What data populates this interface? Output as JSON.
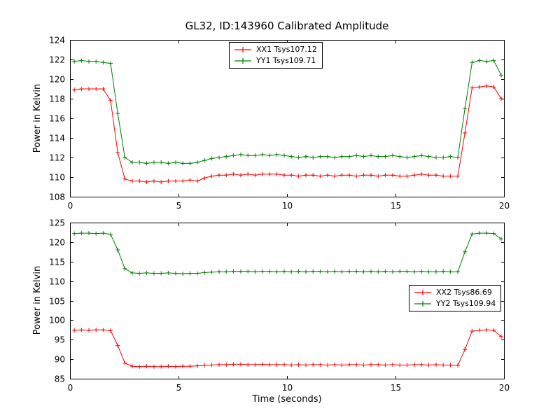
{
  "title": "GL32, ID:143960 Calibrated Amplitude",
  "xlabel": "Time (seconds)",
  "colors": {
    "xx": "#ff0000",
    "yy": "#008000",
    "axis": "#000000",
    "background": "#ffffff"
  },
  "chart_data": [
    {
      "type": "line",
      "ylabel": "Power in Kelvin",
      "xlim": [
        0,
        20
      ],
      "ylim": [
        108,
        124
      ],
      "xticks": [
        0,
        5,
        10,
        15,
        20
      ],
      "yticks": [
        108,
        110,
        112,
        114,
        116,
        118,
        120,
        122,
        124
      ],
      "grid": false,
      "legend": {
        "position": "top-center",
        "entries": [
          {
            "label": "XX1 Tsys107.12",
            "color": "#ff0000"
          },
          {
            "label": "YY1 Tsys109.71",
            "color": "#008000"
          }
        ]
      },
      "x": [
        0.2,
        0.53,
        0.87,
        1.2,
        1.53,
        1.87,
        2.2,
        2.53,
        2.87,
        3.2,
        3.53,
        3.87,
        4.2,
        4.53,
        4.87,
        5.2,
        5.53,
        5.87,
        6.2,
        6.53,
        6.87,
        7.2,
        7.53,
        7.87,
        8.2,
        8.53,
        8.87,
        9.2,
        9.53,
        9.87,
        10.2,
        10.53,
        10.87,
        11.2,
        11.53,
        11.87,
        12.2,
        12.53,
        12.87,
        13.2,
        13.53,
        13.87,
        14.2,
        14.53,
        14.87,
        15.2,
        15.53,
        15.87,
        16.2,
        16.53,
        16.87,
        17.2,
        17.53,
        17.87,
        18.2,
        18.53,
        18.87,
        19.2,
        19.53,
        19.87
      ],
      "series": [
        {
          "name": "XX1",
          "color": "#ff0000",
          "values": [
            118.9,
            119.0,
            119.0,
            119.0,
            119.0,
            117.8,
            112.5,
            109.8,
            109.6,
            109.6,
            109.5,
            109.6,
            109.5,
            109.6,
            109.6,
            109.6,
            109.7,
            109.6,
            109.9,
            110.1,
            110.2,
            110.2,
            110.3,
            110.2,
            110.3,
            110.2,
            110.3,
            110.3,
            110.3,
            110.2,
            110.2,
            110.1,
            110.2,
            110.2,
            110.1,
            110.2,
            110.1,
            110.2,
            110.2,
            110.1,
            110.2,
            110.2,
            110.1,
            110.2,
            110.2,
            110.1,
            110.1,
            110.2,
            110.3,
            110.2,
            110.2,
            110.1,
            110.1,
            110.1,
            114.5,
            119.1,
            119.2,
            119.3,
            119.2,
            118.0
          ]
        },
        {
          "name": "YY1",
          "color": "#008000",
          "values": [
            121.8,
            121.9,
            121.8,
            121.8,
            121.7,
            121.6,
            116.5,
            112.0,
            111.5,
            111.5,
            111.4,
            111.5,
            111.5,
            111.4,
            111.5,
            111.4,
            111.4,
            111.5,
            111.7,
            111.9,
            112.0,
            112.1,
            112.2,
            112.3,
            112.2,
            112.2,
            112.3,
            112.2,
            112.3,
            112.2,
            112.1,
            112.0,
            112.1,
            112.0,
            112.1,
            112.1,
            112.0,
            112.1,
            112.1,
            112.2,
            112.1,
            112.2,
            112.1,
            112.1,
            112.2,
            112.1,
            112.0,
            112.1,
            112.2,
            112.1,
            112.0,
            112.0,
            112.1,
            112.0,
            117.0,
            121.7,
            121.9,
            121.8,
            121.9,
            120.4
          ]
        }
      ]
    },
    {
      "type": "line",
      "xlabel": "Time (seconds)",
      "ylabel": "Power in Kelvin",
      "xlim": [
        0,
        20
      ],
      "ylim": [
        85,
        125
      ],
      "xticks": [
        0,
        5,
        10,
        15,
        20
      ],
      "yticks": [
        85,
        90,
        95,
        100,
        105,
        110,
        115,
        120,
        125
      ],
      "grid": false,
      "legend": {
        "position": "middle-right",
        "entries": [
          {
            "label": "XX2 Tsys86.69",
            "color": "#ff0000"
          },
          {
            "label": "YY2 Tsys109.94",
            "color": "#008000"
          }
        ]
      },
      "x": [
        0.2,
        0.53,
        0.87,
        1.2,
        1.53,
        1.87,
        2.2,
        2.53,
        2.87,
        3.2,
        3.53,
        3.87,
        4.2,
        4.53,
        4.87,
        5.2,
        5.53,
        5.87,
        6.2,
        6.53,
        6.87,
        7.2,
        7.53,
        7.87,
        8.2,
        8.53,
        8.87,
        9.2,
        9.53,
        9.87,
        10.2,
        10.53,
        10.87,
        11.2,
        11.53,
        11.87,
        12.2,
        12.53,
        12.87,
        13.2,
        13.53,
        13.87,
        14.2,
        14.53,
        14.87,
        15.2,
        15.53,
        15.87,
        16.2,
        16.53,
        16.87,
        17.2,
        17.53,
        17.87,
        18.2,
        18.53,
        18.87,
        19.2,
        19.53,
        19.87
      ],
      "series": [
        {
          "name": "XX2",
          "color": "#ff0000",
          "values": [
            97.4,
            97.5,
            97.4,
            97.5,
            97.5,
            97.3,
            93.5,
            89.0,
            88.2,
            88.1,
            88.2,
            88.1,
            88.1,
            88.2,
            88.1,
            88.2,
            88.2,
            88.3,
            88.4,
            88.5,
            88.6,
            88.6,
            88.7,
            88.7,
            88.6,
            88.6,
            88.7,
            88.6,
            88.6,
            88.6,
            88.5,
            88.6,
            88.5,
            88.6,
            88.6,
            88.5,
            88.6,
            88.5,
            88.6,
            88.6,
            88.5,
            88.6,
            88.6,
            88.5,
            88.6,
            88.5,
            88.5,
            88.6,
            88.6,
            88.5,
            88.6,
            88.5,
            88.5,
            88.4,
            92.5,
            97.2,
            97.4,
            97.5,
            97.4,
            95.8
          ]
        },
        {
          "name": "YY2",
          "color": "#008000",
          "values": [
            122.2,
            122.3,
            122.3,
            122.2,
            122.3,
            122.0,
            118.0,
            113.2,
            112.1,
            112.0,
            112.1,
            112.0,
            112.0,
            112.1,
            112.0,
            111.9,
            112.0,
            112.0,
            112.2,
            112.3,
            112.4,
            112.4,
            112.5,
            112.5,
            112.5,
            112.4,
            112.5,
            112.5,
            112.4,
            112.5,
            112.4,
            112.5,
            112.4,
            112.5,
            112.5,
            112.4,
            112.5,
            112.4,
            112.5,
            112.5,
            112.4,
            112.5,
            112.4,
            112.5,
            112.4,
            112.5,
            112.5,
            112.4,
            112.5,
            112.4,
            112.4,
            112.5,
            112.4,
            112.4,
            117.5,
            122.1,
            122.3,
            122.3,
            122.2,
            120.8
          ]
        }
      ]
    }
  ]
}
